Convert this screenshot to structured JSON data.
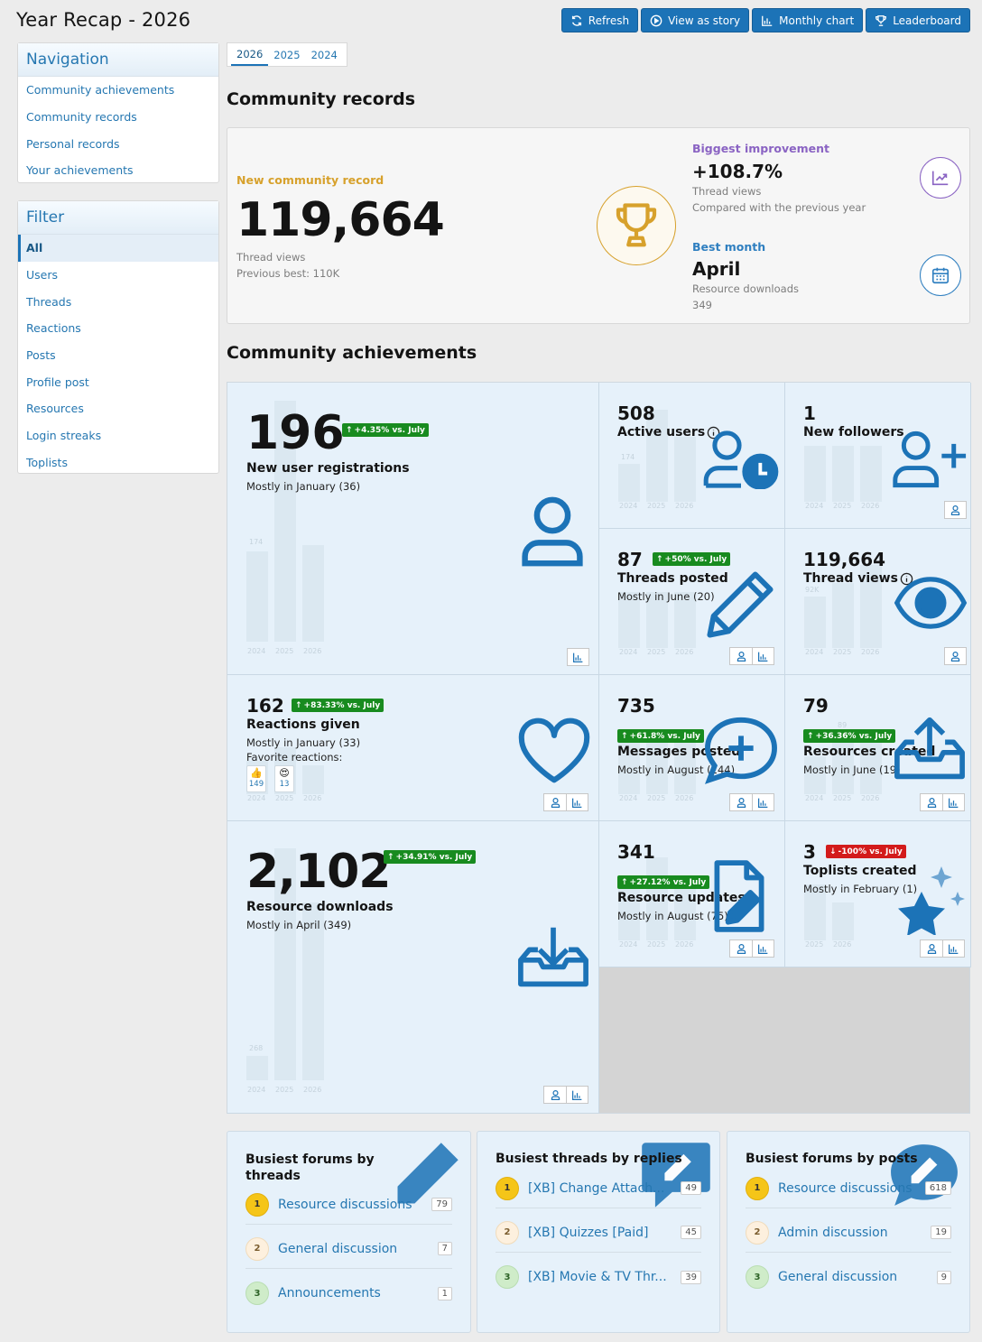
{
  "page": {
    "title": "Year Recap - 2026"
  },
  "top_buttons": [
    {
      "label": "Refresh",
      "icon": "refresh-icon"
    },
    {
      "label": "View as story",
      "icon": "play-icon"
    },
    {
      "label": "Monthly chart",
      "icon": "bar-chart-icon"
    },
    {
      "label": "Leaderboard",
      "icon": "trophy-icon"
    }
  ],
  "navigation": {
    "title": "Navigation",
    "items": [
      "Community achievements",
      "Community records",
      "Personal records",
      "Your achievements"
    ]
  },
  "filter": {
    "title": "Filter",
    "items": [
      "All",
      "Users",
      "Threads",
      "Reactions",
      "Posts",
      "Profile post",
      "Resources",
      "Login streaks",
      "Toplists"
    ],
    "selected": "All"
  },
  "year_tabs": {
    "items": [
      "2026",
      "2025",
      "2024"
    ],
    "selected": "2026"
  },
  "records": {
    "heading": "Community records",
    "new_record": {
      "label": "New community record",
      "value": "119,664",
      "metric": "Thread views",
      "previous": "Previous best: 110K"
    },
    "improvement": {
      "label": "Biggest improvement",
      "value": "+108.7%",
      "metric": "Thread views",
      "note": "Compared with the previous year"
    },
    "best_month": {
      "label": "Best month",
      "value": "April",
      "metric": "Resource downloads",
      "count": "349"
    }
  },
  "achievements": {
    "heading": "Community achievements",
    "cards": {
      "registrations": {
        "value": "196",
        "badge": "+4.35% vs. July",
        "label": "New user registrations",
        "sub": "Mostly in January (36)",
        "bar_label": "174",
        "years": [
          "2024",
          "2025",
          "2026"
        ]
      },
      "active_users": {
        "value": "508",
        "label": "Active users",
        "bar_label": "174",
        "years": [
          "2024",
          "2025",
          "2026"
        ]
      },
      "followers": {
        "value": "1",
        "label": "New followers",
        "years": [
          "2024",
          "2025",
          "2026"
        ]
      },
      "threads": {
        "value": "87",
        "badge": "+50% vs. July",
        "label": "Threads posted",
        "sub": "Mostly in June (20)",
        "years": [
          "2024",
          "2025",
          "2026"
        ]
      },
      "thread_views": {
        "value": "119,664",
        "label": "Thread views",
        "bar_label": "92K",
        "years": [
          "2024",
          "2025",
          "2026"
        ]
      },
      "reactions": {
        "value": "162",
        "badge": "+83.33% vs. July",
        "label": "Reactions given",
        "sub": "Mostly in January (33)",
        "fav_label": "Favorite reactions:",
        "fav": [
          {
            "emoji": "👍",
            "count": "149"
          },
          {
            "emoji": "😍",
            "count": "13"
          }
        ],
        "years": [
          "2024",
          "2025",
          "2026"
        ]
      },
      "messages": {
        "value": "735",
        "badge": "+61.8% vs. July",
        "label": "Messages posted",
        "sub": "Mostly in August (144)",
        "years": [
          "2024",
          "2025",
          "2026"
        ]
      },
      "resources_created": {
        "value": "79",
        "badge": "+36.36% vs. July",
        "label": "Resources created",
        "sub": "Mostly in June (19)",
        "bar_label": "89",
        "years": [
          "2024",
          "2025",
          "2026"
        ]
      },
      "downloads": {
        "value": "2,102",
        "badge": "+34.91% vs. July",
        "label": "Resource downloads",
        "sub": "Mostly in April (349)",
        "bar_label": "268",
        "years": [
          "2024",
          "2025",
          "2026"
        ]
      },
      "resource_updates": {
        "value": "341",
        "badge": "+27.12% vs. July",
        "label": "Resource updates",
        "sub": "Mostly in August (75)",
        "years": [
          "2024",
          "2025",
          "2026"
        ]
      },
      "toplists": {
        "value": "3",
        "badge": "-100% vs. July",
        "label": "Toplists created",
        "sub": "Mostly in February (1)",
        "years": [
          "2025",
          "2026"
        ]
      }
    }
  },
  "leaderboards": [
    {
      "title": "Busiest forums by threads",
      "rows": [
        {
          "rank": "1",
          "name": "Resource discussions",
          "count": "79"
        },
        {
          "rank": "2",
          "name": "General discussion",
          "count": "7"
        },
        {
          "rank": "3",
          "name": "Announcements",
          "count": "1"
        }
      ]
    },
    {
      "title": "Busiest threads by replies",
      "rows": [
        {
          "rank": "1",
          "name": "[XB] Change Attach...",
          "count": "49"
        },
        {
          "rank": "2",
          "name": "[XB] Quizzes [Paid]",
          "count": "45"
        },
        {
          "rank": "3",
          "name": "[XB] Movie & TV Thr...",
          "count": "39"
        }
      ]
    },
    {
      "title": "Busiest forums by posts",
      "rows": [
        {
          "rank": "1",
          "name": "Resource discussions",
          "count": "618"
        },
        {
          "rank": "2",
          "name": "Admin discussion",
          "count": "19"
        },
        {
          "rank": "3",
          "name": "General discussion",
          "count": "9"
        }
      ]
    }
  ],
  "colors": {
    "accent": "#1c73b7",
    "gold": "#d7a12c",
    "purple": "#8a63c3",
    "up": "#188b1f",
    "down": "#d31b1b",
    "card_bg": "#e6f1fa"
  }
}
